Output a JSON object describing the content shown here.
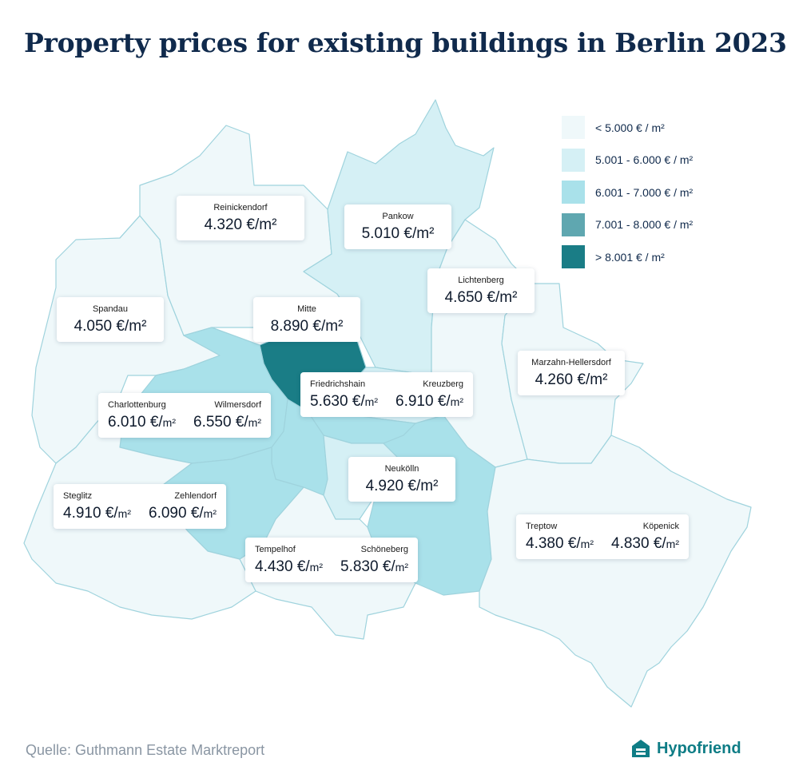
{
  "title": "Property prices for existing buildings in Berlin 2023",
  "legend": [
    {
      "label": "< 5.000 € / m²",
      "color": "#eff8fa"
    },
    {
      "label": "5.001 - 6.000 € / m²",
      "color": "#d5f0f5"
    },
    {
      "label": "6.001 - 7.000 € / m²",
      "color": "#a9e1ea"
    },
    {
      "label": "7.001 - 8.000 € / m²",
      "color": "#5fa7b0"
    },
    {
      "label": "> 8.001 € / m²",
      "color": "#1a7d86"
    }
  ],
  "districts": {
    "reinickendorf": {
      "name": "Reinickendorf",
      "price": "4.320 €/m²"
    },
    "pankow": {
      "name": "Pankow",
      "price": "5.010 €/m²"
    },
    "lichtenberg": {
      "name": "Lichtenberg",
      "price": "4.650 €/m²"
    },
    "spandau": {
      "name": "Spandau",
      "price": "4.050 €/m²"
    },
    "mitte": {
      "name": "Mitte",
      "price": "8.890 €/m²"
    },
    "marzahn": {
      "name": "Marzahn-Hellersdorf",
      "price": "4.260 €/m²"
    },
    "friedrichshain": {
      "name": "Friedrichshain",
      "price": "5.630 €/",
      "unit": "m²"
    },
    "kreuzberg": {
      "name": "Kreuzberg",
      "price": "6.910 €/",
      "unit": "m²"
    },
    "charlottenburg": {
      "name": "Charlottenburg",
      "price": "6.010 €/",
      "unit": "m²"
    },
    "wilmersdorf": {
      "name": "Wilmersdorf",
      "price": "6.550 €/",
      "unit": "m²"
    },
    "neukoelln": {
      "name": "Neukölln",
      "price": "4.920 €/m²"
    },
    "steglitz": {
      "name": "Steglitz",
      "price": "4.910 €/",
      "unit": "m²"
    },
    "zehlendorf": {
      "name": "Zehlendorf",
      "price": "6.090 €/",
      "unit": "m²"
    },
    "treptow": {
      "name": "Treptow",
      "price": "4.380 €/",
      "unit": "m²"
    },
    "koepenick": {
      "name": "Köpenick",
      "price": "4.830 €/",
      "unit": "m²"
    },
    "tempelhof": {
      "name": "Tempelhof",
      "price": "4.430 €/",
      "unit": "m²"
    },
    "schoeneberg": {
      "name": "Schöneberg",
      "price": "5.830 €/",
      "unit": "m²"
    }
  },
  "source": "Quelle: Guthmann Estate Marktreport",
  "brand": {
    "name": "Hypofriend",
    "icon": "house-logo-icon"
  }
}
